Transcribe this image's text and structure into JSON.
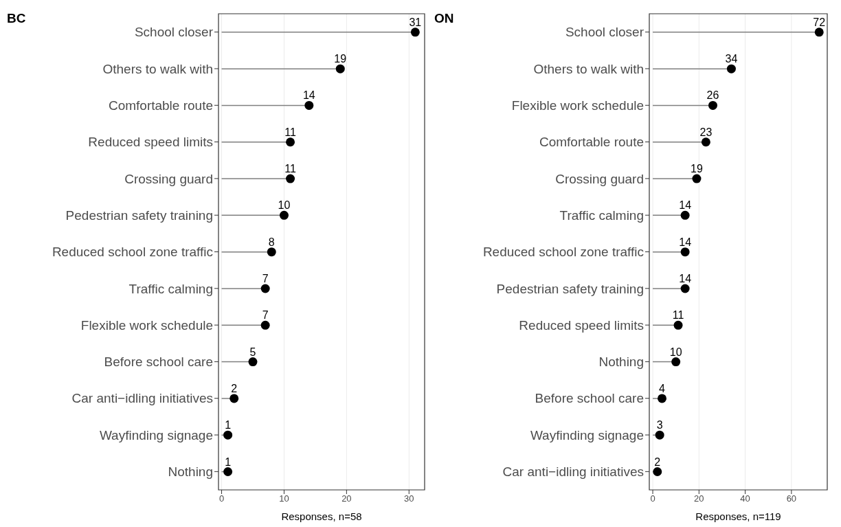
{
  "chart_data": [
    {
      "type": "lollipop",
      "title": "BC",
      "orientation": "horizontal",
      "xlabel": "Responses, n=58",
      "categories": [
        "School closer",
        "Others to walk with",
        "Comfortable route",
        "Reduced speed limits",
        "Crossing guard",
        "Pedestrian safety training",
        "Reduced school zone traffic",
        "Traffic calming",
        "Flexible work schedule",
        "Before school care",
        "Car anti−idling initiatives",
        "Wayfinding signage",
        "Nothing"
      ],
      "values": [
        31,
        19,
        14,
        11,
        11,
        10,
        8,
        7,
        7,
        5,
        2,
        1,
        1
      ],
      "color": "#000000",
      "xlim": [
        -0.5,
        32.5
      ],
      "xticks": [
        0,
        10,
        20,
        30
      ],
      "grid": "x",
      "data_labels": true
    },
    {
      "type": "lollipop",
      "title": "ON",
      "orientation": "horizontal",
      "xlabel": "Responses, n=119",
      "categories": [
        "School closer",
        "Others to walk with",
        "Flexible work schedule",
        "Comfortable route",
        "Crossing guard",
        "Traffic calming",
        "Reduced school zone traffic",
        "Pedestrian safety training",
        "Reduced speed limits",
        "Nothing",
        "Before school care",
        "Wayfinding signage",
        "Car anti−idling initiatives"
      ],
      "values": [
        72,
        34,
        26,
        23,
        19,
        14,
        14,
        14,
        11,
        10,
        4,
        3,
        2
      ],
      "color": "#000000",
      "xlim": [
        -1.5,
        75.5
      ],
      "xticks": [
        0,
        20,
        40,
        60
      ],
      "grid": "x",
      "data_labels": true
    }
  ]
}
